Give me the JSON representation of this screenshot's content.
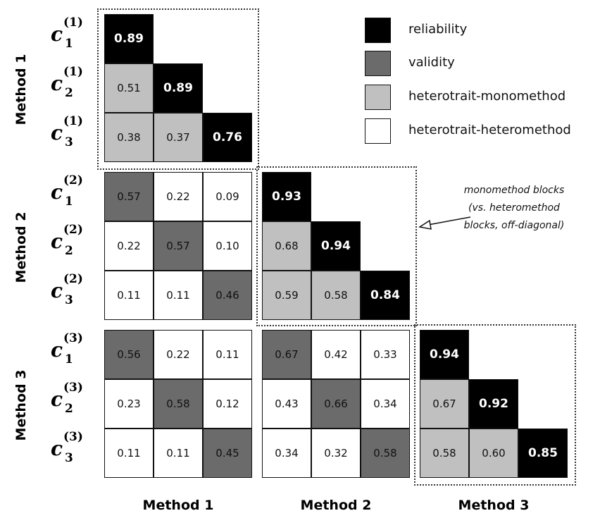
{
  "legend": [
    {
      "label": "reliability",
      "color": "#000000"
    },
    {
      "label": "validity",
      "color": "#6b6b6b"
    },
    {
      "label": "heterotrait-monomethod",
      "color": "#c0c0c0"
    },
    {
      "label": "heterotrait-heteromethod",
      "color": "#ffffff"
    }
  ],
  "methods": [
    "Method 1",
    "Method 2",
    "Method 3"
  ],
  "row_labels": [
    {
      "base": "c",
      "sub": "1",
      "sup": "(1)"
    },
    {
      "base": "c",
      "sub": "2",
      "sup": "(1)"
    },
    {
      "base": "c",
      "sub": "3",
      "sup": "(1)"
    },
    {
      "base": "c",
      "sub": "1",
      "sup": "(2)"
    },
    {
      "base": "c",
      "sub": "2",
      "sup": "(2)"
    },
    {
      "base": "c",
      "sub": "3",
      "sup": "(2)"
    },
    {
      "base": "c",
      "sub": "1",
      "sup": "(3)"
    },
    {
      "base": "c",
      "sub": "2",
      "sup": "(3)"
    },
    {
      "base": "c",
      "sub": "3",
      "sup": "(3)"
    }
  ],
  "matrix": [
    [
      "0.89"
    ],
    [
      "0.51",
      "0.89"
    ],
    [
      "0.38",
      "0.37",
      "0.76"
    ],
    [
      "0.57",
      "0.22",
      "0.09",
      "0.93"
    ],
    [
      "0.22",
      "0.57",
      "0.10",
      "0.68",
      "0.94"
    ],
    [
      "0.11",
      "0.11",
      "0.46",
      "0.59",
      "0.58",
      "0.84"
    ],
    [
      "0.56",
      "0.22",
      "0.11",
      "0.67",
      "0.42",
      "0.33",
      "0.94"
    ],
    [
      "0.23",
      "0.58",
      "0.12",
      "0.43",
      "0.66",
      "0.34",
      "0.67",
      "0.92"
    ],
    [
      "0.11",
      "0.11",
      "0.45",
      "0.34",
      "0.32",
      "0.58",
      "0.58",
      "0.60",
      "0.85"
    ]
  ],
  "annotation": [
    "monomethod blocks",
    "(vs. heteromethod",
    "blocks, off-diagonal)"
  ]
}
